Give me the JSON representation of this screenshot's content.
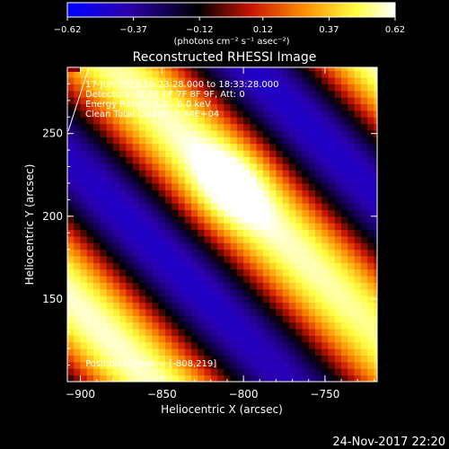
{
  "chart_data": {
    "type": "heatmap",
    "title": "Reconstructed RHESSI Image",
    "xlabel": "Heliocentric X (arcsec)",
    "ylabel": "Heliocentric Y (arcsec)",
    "xlim": [
      -908,
      -718
    ],
    "ylim": [
      100,
      290
    ],
    "xticks": [
      -900,
      -850,
      -800,
      -750
    ],
    "xtick_labels": [
      "−900",
      "−850",
      "−800",
      "−750"
    ],
    "yticks": [
      150,
      200,
      250
    ],
    "ytick_labels": [
      "150",
      "200",
      "250"
    ],
    "colorbar": {
      "range": [
        -0.62,
        0.62
      ],
      "ticks": [
        -0.62,
        -0.37,
        -0.12,
        0.12,
        0.37,
        0.62
      ],
      "tick_labels": [
        "−0.62",
        "−0.37",
        "−0.12",
        "0.12",
        "0.37",
        "0.62"
      ],
      "units_label": "(photons cm⁻² s⁻¹ asec⁻²)",
      "colormap_stops": [
        "#0000ff",
        "#2a00b0",
        "#000000",
        "#c81400",
        "#ff8c00",
        "#ffff40",
        "#ffffff"
      ]
    },
    "peak": [
      -808,
      219
    ],
    "annotations": {
      "time_range": "17-Jun-2015 18:23:28.000 to 18:33:28.000",
      "detectors": "Detectors: 3F 5F 6F 7F 8F 9F, Att: 0",
      "energy_range": "Energy Range: 3.0 - 6.0 keV",
      "method": "Clean     Total Counts: 2.44E+04",
      "peak_text": "Position of Peak = [-808,219]"
    },
    "footer_timestamp": "24-Nov-2017 22:20"
  }
}
